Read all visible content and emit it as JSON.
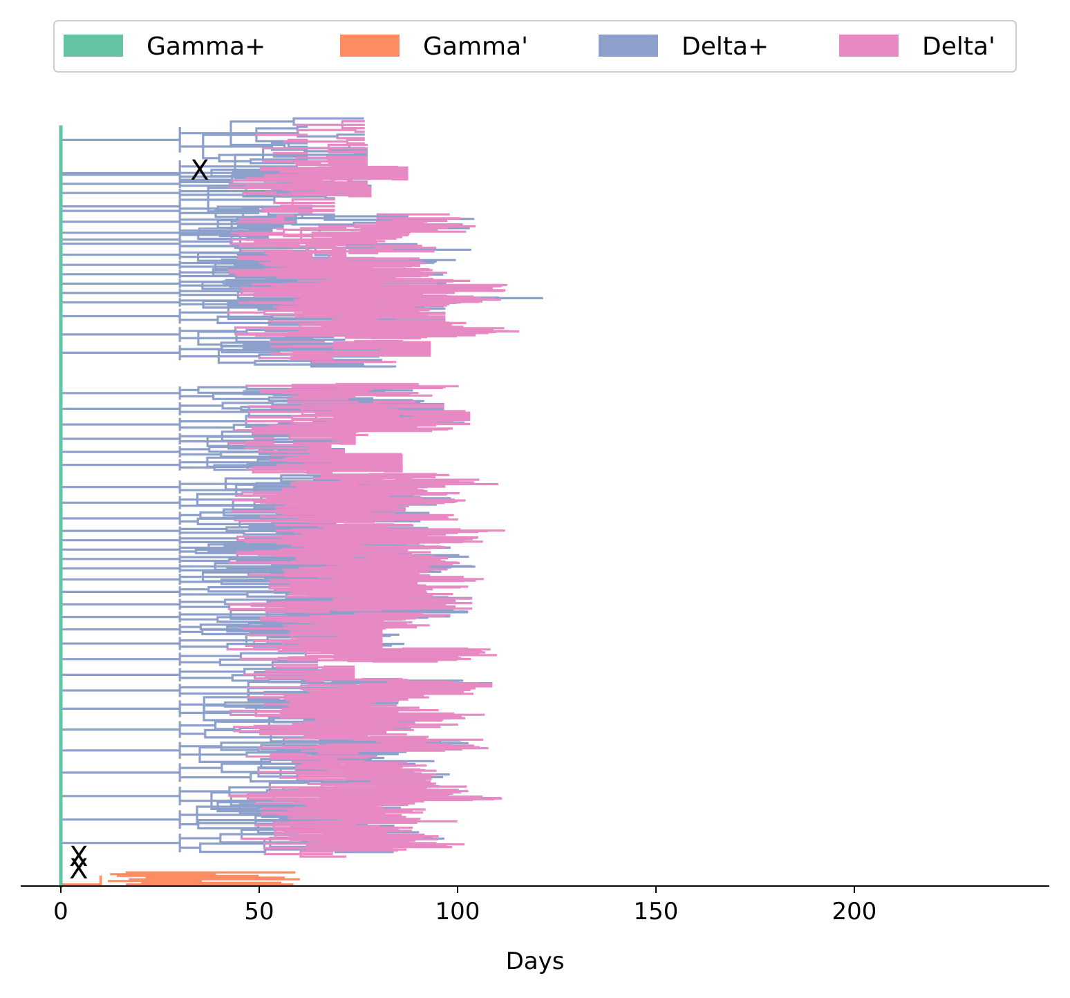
{
  "chart_data": {
    "type": "line",
    "subtype": "phylogenetic-tree",
    "title": "",
    "xlabel": "Days",
    "ylabel": "",
    "xlim": [
      -10,
      250
    ],
    "xticks": [
      0,
      50,
      100,
      150,
      200
    ],
    "grid": false,
    "legend_position": "top",
    "series": [
      {
        "name": "Gamma+",
        "color": "#66c2a5"
      },
      {
        "name": "Gamma'",
        "color": "#fc8d62"
      },
      {
        "name": "Delta+",
        "color": "#8da0cb"
      },
      {
        "name": "Delta'",
        "color": "#e78ac3"
      }
    ],
    "markers": [
      {
        "label": "X",
        "x": 35,
        "y": 0.915
      },
      {
        "label": "X",
        "x": 4.5,
        "y": 0.038
      },
      {
        "label": "X",
        "x": 4.5,
        "y": 0.022
      }
    ]
  }
}
